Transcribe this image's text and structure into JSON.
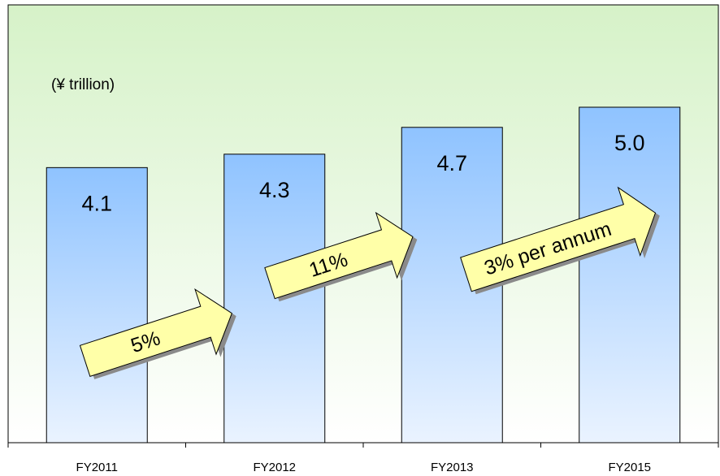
{
  "chart_data": {
    "type": "bar",
    "unit_label": "(¥ trillion)",
    "categories": [
      "FY2011",
      "FY2012",
      "FY2013",
      "FY2015"
    ],
    "values": [
      4.1,
      4.3,
      4.7,
      5.0
    ],
    "value_labels": [
      "4.1",
      "4.3",
      "4.7",
      "5.0"
    ],
    "growth_annotations": [
      {
        "from": "FY2011",
        "to": "FY2012",
        "label": "5%"
      },
      {
        "from": "FY2012",
        "to": "FY2013",
        "label": "11%"
      },
      {
        "from": "FY2013",
        "to": "FY2015",
        "label": "3% per annum"
      }
    ],
    "ylim": [
      0,
      5.6
    ],
    "grid": false,
    "colors": {
      "plot_background_top": "#d6f2c8",
      "plot_background_bottom": "#ffffff",
      "bar_top": "#8fc3ff",
      "bar_bottom": "#eaf3ff",
      "arrow_fill": "#ffffa8",
      "arrow_shadow": "#8a8a8a"
    }
  }
}
